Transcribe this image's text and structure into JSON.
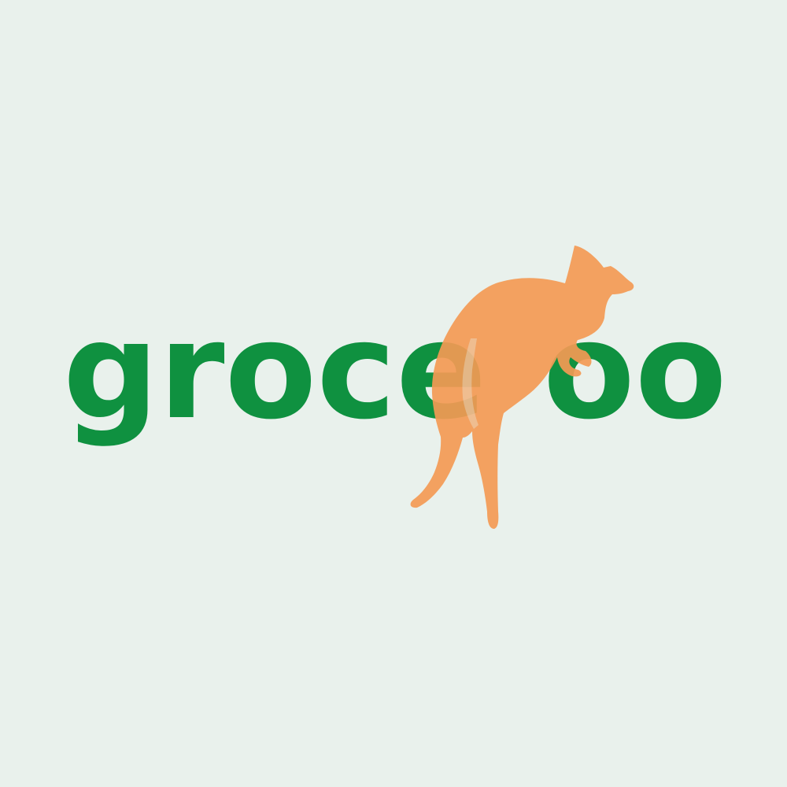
{
  "brand": {
    "wordmark": "grocekoo",
    "wordmark_visible_left": "groce",
    "wordmark_visible_right": "oo",
    "colors": {
      "background": "#e9f1ec",
      "wordmark": "#0f9140",
      "kangaroo": "#f39a54"
    },
    "icon": "kangaroo-icon"
  }
}
